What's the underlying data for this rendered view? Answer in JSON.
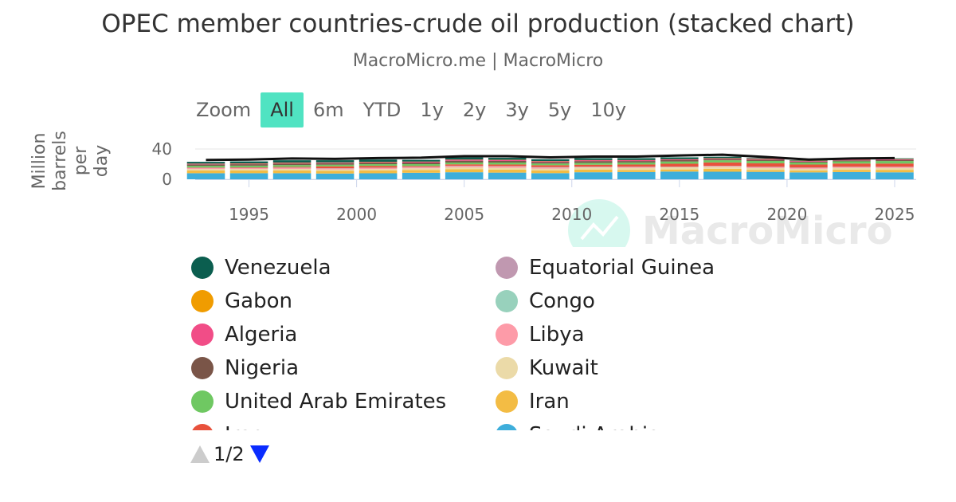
{
  "chart_data": {
    "type": "stacked-bar",
    "title": "OPEC member countries-crude oil production (stacked chart)",
    "subtitle": "MacroMicro.me | MacroMicro",
    "ylabel": "Million barrels per day",
    "watermark": "MacroMicro",
    "range_selector": {
      "label": "Zoom",
      "buttons": [
        "All",
        "6m",
        "YTD",
        "1y",
        "2y",
        "3y",
        "5y",
        "10y"
      ],
      "selected": 0
    },
    "legend_page": "1/2",
    "x": [
      1993,
      1995,
      1997,
      1999,
      2001,
      2003,
      2005,
      2007,
      2009,
      2011,
      2013,
      2015,
      2017,
      2019,
      2021,
      2023,
      2025
    ],
    "xlim": [
      1992.5,
      2026
    ],
    "xticks": [
      1995,
      2000,
      2005,
      2010,
      2015,
      2020,
      2025
    ],
    "ylim": [
      0,
      40
    ],
    "yticks": [
      0,
      40
    ],
    "grid": true,
    "series": [
      {
        "name": "Venezuela",
        "color": "#0b5e4f",
        "values": [
          2.3,
          2.6,
          3.0,
          2.8,
          2.9,
          2.3,
          2.7,
          2.5,
          2.3,
          2.4,
          2.4,
          2.4,
          1.9,
          0.8,
          0.6,
          0.8,
          0.9
        ]
      },
      {
        "name": "Gabon",
        "color": "#f09c00",
        "values": [
          0.3,
          0.35,
          0.37,
          0.34,
          0.3,
          0.24,
          0.23,
          0.23,
          0.23,
          0.24,
          0.22,
          0.21,
          0.2,
          0.21,
          0.18,
          0.2,
          0.22
        ]
      },
      {
        "name": "Algeria",
        "color": "#f14d87",
        "values": [
          0.75,
          0.75,
          0.85,
          0.77,
          0.82,
          1.1,
          1.35,
          1.37,
          1.22,
          1.17,
          1.15,
          1.1,
          1.05,
          1.02,
          0.92,
          0.97,
          0.92
        ]
      },
      {
        "name": "Nigeria",
        "color": "#7a5548",
        "values": [
          1.9,
          1.9,
          2.1,
          2.0,
          2.1,
          2.1,
          2.4,
          2.1,
          1.8,
          2.3,
          1.9,
          1.8,
          1.5,
          1.8,
          1.3,
          1.3,
          1.5
        ]
      },
      {
        "name": "United Arab Emirates",
        "color": "#6fc862",
        "values": [
          2.2,
          2.2,
          2.3,
          2.1,
          2.2,
          2.3,
          2.4,
          2.6,
          2.3,
          2.5,
          2.7,
          2.9,
          2.9,
          3.1,
          2.7,
          2.9,
          3.3
        ]
      },
      {
        "name": "Iraq",
        "color": "#e8513c",
        "values": [
          0.5,
          0.6,
          1.1,
          2.5,
          2.4,
          1.3,
          1.8,
          2.1,
          2.4,
          2.7,
          3.0,
          3.9,
          4.4,
          4.7,
          4.0,
          4.2,
          4.2
        ]
      },
      {
        "name": "Equatorial Guinea",
        "color": "#c098b0",
        "values": [
          0.01,
          0.01,
          0.05,
          0.1,
          0.18,
          0.24,
          0.3,
          0.32,
          0.3,
          0.26,
          0.25,
          0.2,
          0.13,
          0.12,
          0.09,
          0.06,
          0.05
        ]
      },
      {
        "name": "Congo",
        "color": "#98d1bc",
        "values": [
          0.2,
          0.2,
          0.26,
          0.27,
          0.26,
          0.24,
          0.25,
          0.22,
          0.27,
          0.29,
          0.27,
          0.25,
          0.3,
          0.33,
          0.27,
          0.26,
          0.26
        ]
      },
      {
        "name": "Libya",
        "color": "#fd9ba8",
        "values": [
          1.4,
          1.4,
          1.4,
          1.3,
          1.3,
          1.4,
          1.6,
          1.7,
          1.5,
          0.5,
          0.9,
          0.4,
          0.9,
          1.1,
          1.2,
          1.2,
          1.3
        ]
      },
      {
        "name": "Kuwait",
        "color": "#ebdaa8",
        "values": [
          1.9,
          2.0,
          2.1,
          1.9,
          2.0,
          2.2,
          2.6,
          2.5,
          2.3,
          2.6,
          2.8,
          2.8,
          2.7,
          2.7,
          2.4,
          2.6,
          2.5
        ]
      },
      {
        "name": "Iran",
        "color": "#f3bc44",
        "values": [
          3.6,
          3.6,
          3.6,
          3.5,
          3.7,
          3.7,
          3.9,
          3.9,
          3.7,
          3.6,
          2.7,
          2.8,
          3.8,
          2.4,
          2.4,
          2.9,
          3.3
        ]
      },
      {
        "name": "Saudi Arabia",
        "color": "#3eaedb",
        "values": [
          8.0,
          8.0,
          8.0,
          7.6,
          7.9,
          8.6,
          9.3,
          8.8,
          8.1,
          9.3,
          9.6,
          10.2,
          10.0,
          9.8,
          9.1,
          9.6,
          9.2
        ]
      }
    ],
    "total": {
      "color": "#111111",
      "values": [
        25.5,
        26.0,
        27.5,
        27.0,
        28.0,
        28.5,
        30.5,
        30.5,
        29.0,
        30.0,
        30.0,
        31.5,
        32.5,
        29.5,
        26.0,
        27.5,
        28.0
      ]
    }
  }
}
